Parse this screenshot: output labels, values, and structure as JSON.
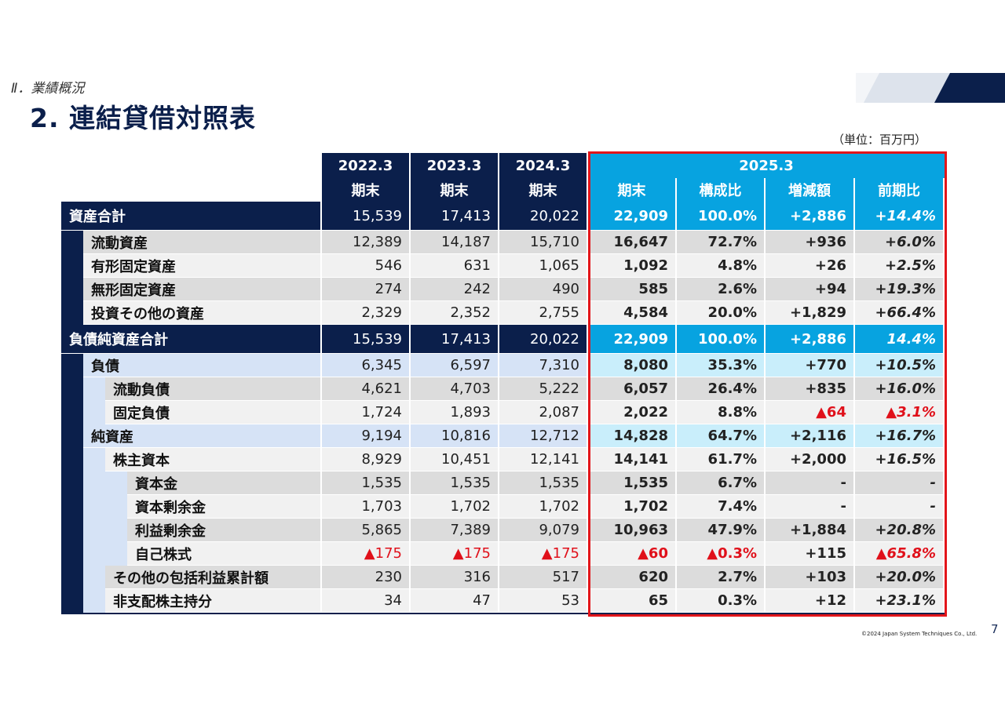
{
  "header": {
    "breadcrumb": "Ⅱ．業績概況",
    "title": "2. 連結貸借対照表",
    "unit": "（単位：百万円）"
  },
  "table": {
    "columns": [
      {
        "year": "2022.3",
        "sub": "期末"
      },
      {
        "year": "2023.3",
        "sub": "期末"
      },
      {
        "year": "2024.3",
        "sub": "期末"
      }
    ],
    "current_year": "2025.3",
    "current_subcolumns": [
      "期末",
      "構成比",
      "増減額",
      "前期比"
    ],
    "rows": [
      {
        "label": "資産合計",
        "values": [
          "15,539",
          "17,413",
          "20,022",
          "22,909",
          "100.0%",
          "+2,886",
          "+14.4%"
        ]
      },
      {
        "label": "流動資産",
        "values": [
          "12,389",
          "14,187",
          "15,710",
          "16,647",
          "72.7%",
          "+936",
          "+6.0%"
        ]
      },
      {
        "label": "有形固定資産",
        "values": [
          "546",
          "631",
          "1,065",
          "1,092",
          "4.8%",
          "+26",
          "+2.5%"
        ]
      },
      {
        "label": "無形固定資産",
        "values": [
          "274",
          "242",
          "490",
          "585",
          "2.6%",
          "+94",
          "+19.3%"
        ]
      },
      {
        "label": "投資その他の資産",
        "values": [
          "2,329",
          "2,352",
          "2,755",
          "4,584",
          "20.0%",
          "+1,829",
          "+66.4%"
        ]
      },
      {
        "label": "負債純資産合計",
        "values": [
          "15,539",
          "17,413",
          "20,022",
          "22,909",
          "100.0%",
          "+2,886",
          "14.4%"
        ]
      },
      {
        "label": "負債",
        "values": [
          "6,345",
          "6,597",
          "7,310",
          "8,080",
          "35.3%",
          "+770",
          "+10.5%"
        ]
      },
      {
        "label": "流動負債",
        "values": [
          "4,621",
          "4,703",
          "5,222",
          "6,057",
          "26.4%",
          "+835",
          "+16.0%"
        ]
      },
      {
        "label": "固定負債",
        "values": [
          "1,724",
          "1,893",
          "2,087",
          "2,022",
          "8.8%",
          "▲64",
          "▲3.1%"
        ]
      },
      {
        "label": "純資産",
        "values": [
          "9,194",
          "10,816",
          "12,712",
          "14,828",
          "64.7%",
          "+2,116",
          "+16.7%"
        ]
      },
      {
        "label": "株主資本",
        "values": [
          "8,929",
          "10,451",
          "12,141",
          "14,141",
          "61.7%",
          "+2,000",
          "+16.5%"
        ]
      },
      {
        "label": "資本金",
        "values": [
          "1,535",
          "1,535",
          "1,535",
          "1,535",
          "6.7%",
          "-",
          "-"
        ]
      },
      {
        "label": "資本剰余金",
        "values": [
          "1,703",
          "1,702",
          "1,702",
          "1,702",
          "7.4%",
          "-",
          "-"
        ]
      },
      {
        "label": "利益剰余金",
        "values": [
          "5,865",
          "7,389",
          "9,079",
          "10,963",
          "47.9%",
          "+1,884",
          "+20.8%"
        ]
      },
      {
        "label": "自己株式",
        "values": [
          "▲175",
          "▲175",
          "▲175",
          "▲60",
          "▲0.3%",
          "+115",
          "▲65.8%"
        ]
      },
      {
        "label": "その他の包括利益累計額",
        "values": [
          "230",
          "316",
          "517",
          "620",
          "2.7%",
          "+103",
          "+20.0%"
        ]
      },
      {
        "label": "非支配株主持分",
        "values": [
          "34",
          "47",
          "53",
          "65",
          "0.3%",
          "+12",
          "+23.1%"
        ]
      }
    ]
  },
  "footer": {
    "page_number": "7",
    "copyright": "©2024 Japan System Techniques Co., Ltd."
  },
  "colors": {
    "navy": "#0b1f4b",
    "cyan": "#07a3e0",
    "negative": "#e0101a",
    "highlight_border": "#e3151a"
  }
}
